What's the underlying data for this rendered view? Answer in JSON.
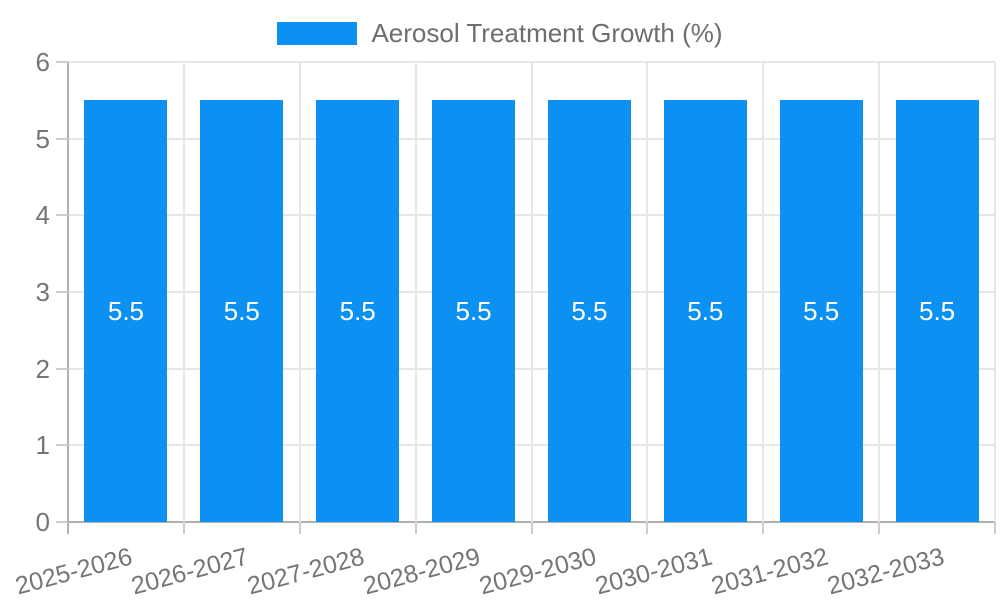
{
  "legend": {
    "label": "Aerosol Treatment Growth (%)"
  },
  "colors": {
    "bar": "#0C90F2",
    "grid": "#e6e6e6",
    "axis": "#b0b0b0",
    "tick": "#cccccc",
    "tick_text": "#757575",
    "legend_text": "#6e6e6e",
    "bar_label_text": "#ffffff",
    "background": "#ffffff"
  },
  "chart_data": {
    "type": "bar",
    "title": "Aerosol Treatment Growth (%)",
    "categories": [
      "2025-2026",
      "2026-2027",
      "2027-2028",
      "2028-2029",
      "2029-2030",
      "2030-2031",
      "2031-2032",
      "2032-2033"
    ],
    "values": [
      5.5,
      5.5,
      5.5,
      5.5,
      5.5,
      5.5,
      5.5,
      5.5
    ],
    "bar_labels": [
      "5.5",
      "5.5",
      "5.5",
      "5.5",
      "5.5",
      "5.5",
      "5.5",
      "5.5"
    ],
    "xlabel": "",
    "ylabel": "",
    "ylim": [
      0,
      6
    ],
    "yticks": [
      0,
      1,
      2,
      3,
      4,
      5,
      6
    ],
    "grid": true,
    "legend_position": "top-center",
    "x_tick_rotation_deg": -15
  }
}
